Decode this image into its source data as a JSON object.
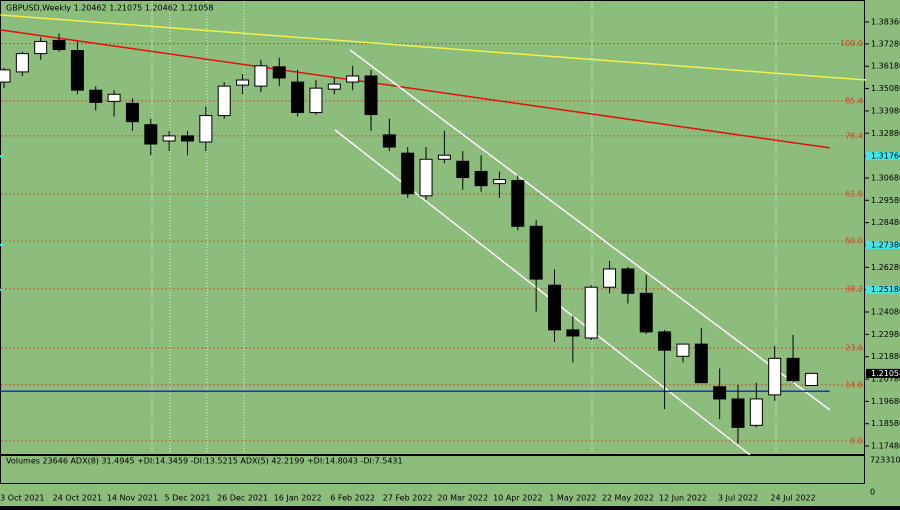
{
  "chart_data": {
    "type": "candlestick",
    "title": "GBPUSD,Weekly  1.20462 1.21075 1.20462 1.21058",
    "x": [
      null,
      "3 Oct 2021",
      null,
      null,
      "24 Oct 2021",
      null,
      null,
      "14 Nov 2021",
      null,
      null,
      "5 Dec 2021",
      null,
      null,
      "26 Dec 2021",
      null,
      null,
      "16 Jan 2022",
      null,
      null,
      "6 Feb 2022",
      null,
      null,
      "27 Feb 2022",
      null,
      null,
      "20 Mar 2022",
      null,
      null,
      "10 Apr 2022",
      null,
      null,
      "1 May 2022",
      null,
      null,
      "22 May 2022",
      null,
      null,
      "12 Jun 2022",
      null,
      null,
      "3 Jul 2022",
      null,
      null,
      "24 Jul 2022",
      null
    ],
    "open": [
      1.354,
      1.359,
      1.368,
      1.3745,
      1.3695,
      1.35,
      1.3445,
      1.3435,
      1.333,
      1.325,
      1.3275,
      1.3245,
      1.3375,
      1.3525,
      1.352,
      1.3615,
      1.354,
      1.339,
      1.3505,
      1.354,
      1.357,
      1.328,
      1.319,
      1.298,
      1.316,
      1.315,
      1.31,
      1.304,
      1.3055,
      1.283,
      1.254,
      1.232,
      1.228,
      1.253,
      1.262,
      1.25,
      1.231,
      1.219,
      1.225,
      1.204,
      1.198,
      1.185,
      1.2,
      1.218,
      1.20462
    ],
    "high": [
      1.361,
      1.369,
      1.376,
      1.378,
      1.374,
      1.352,
      1.35,
      1.346,
      1.336,
      1.33,
      1.33,
      1.342,
      1.354,
      1.358,
      1.365,
      1.366,
      1.36,
      1.355,
      1.356,
      1.362,
      1.36,
      1.336,
      1.322,
      1.322,
      1.33,
      1.32,
      1.318,
      1.31,
      1.308,
      1.286,
      1.262,
      1.239,
      1.254,
      1.266,
      1.263,
      1.259,
      1.232,
      1.225,
      1.233,
      1.213,
      1.205,
      1.206,
      1.224,
      1.2295,
      1.21075
    ],
    "low": [
      1.351,
      1.357,
      1.365,
      1.369,
      1.348,
      1.34,
      1.337,
      1.33,
      1.318,
      1.32,
      1.318,
      1.32,
      1.336,
      1.348,
      1.349,
      1.352,
      1.337,
      1.338,
      1.348,
      1.35,
      1.33,
      1.32,
      1.297,
      1.296,
      1.314,
      1.301,
      1.3,
      1.297,
      1.281,
      1.241,
      1.226,
      1.216,
      1.227,
      1.25,
      1.245,
      1.23,
      1.193,
      1.216,
      1.206,
      1.188,
      1.176,
      1.184,
      1.197,
      1.206,
      1.20462
    ],
    "close": [
      1.36,
      1.368,
      1.374,
      1.37,
      1.35,
      1.344,
      1.348,
      1.3345,
      1.3235,
      1.3275,
      1.325,
      1.3375,
      1.352,
      1.355,
      1.362,
      1.356,
      1.339,
      1.351,
      1.353,
      1.357,
      1.338,
      1.322,
      1.299,
      1.316,
      1.318,
      1.307,
      1.303,
      1.306,
      1.283,
      1.257,
      1.232,
      1.229,
      1.253,
      1.262,
      1.25,
      1.231,
      1.222,
      1.225,
      1.206,
      1.198,
      1.184,
      1.198,
      1.218,
      1.207,
      1.21058
    ],
    "ylim": [
      1.1704,
      1.3944
    ],
    "yticks": [
      {
        "value": 1.3836,
        "label": "1.38360"
      },
      {
        "value": 1.3728,
        "label": "1.37280"
      },
      {
        "value": 1.3618,
        "label": "1.36180"
      },
      {
        "value": 1.3508,
        "label": "1.35080"
      },
      {
        "value": 1.3398,
        "label": "1.33980"
      },
      {
        "value": 1.3288,
        "label": "1.32880"
      },
      {
        "value": 1.3176,
        "label": "1.31760"
      },
      {
        "value": 1.3068,
        "label": "1.30680"
      },
      {
        "value": 1.2958,
        "label": "1.29580"
      },
      {
        "value": 1.2848,
        "label": "1.28480"
      },
      {
        "value": 1.2738,
        "label": "1.27380"
      },
      {
        "value": 1.2628,
        "label": "1.26280"
      },
      {
        "value": 1.2518,
        "label": "1.25180"
      },
      {
        "value": 1.2408,
        "label": "1.24080"
      },
      {
        "value": 1.2298,
        "label": "1.22980"
      },
      {
        "value": 1.2188,
        "label": "1.21880"
      },
      {
        "value": 1.2078,
        "label": "1.20780"
      },
      {
        "value": 1.1968,
        "label": "1.19680"
      },
      {
        "value": 1.1858,
        "label": "1.18580"
      },
      {
        "value": 1.1748,
        "label": "1.17480"
      }
    ],
    "highlighted_yticks": [
      1.3176,
      1.2738,
      1.2518
    ],
    "last_price": {
      "value": 1.21058,
      "label": "1.21058"
    },
    "levels": [
      {
        "label": "100.0",
        "value": 1.3729
      },
      {
        "label": "85.4",
        "value": 1.3447
      },
      {
        "label": "76.4",
        "value": 1.3275
      },
      {
        "label": "61.6",
        "value": 1.2989
      },
      {
        "label": "50.0",
        "value": 1.2757
      },
      {
        "label": "38.2",
        "value": 1.2522
      },
      {
        "label": "23.6",
        "value": 1.2231
      },
      {
        "label": "14.6",
        "value": 1.2049
      },
      {
        "label": "0.0",
        "value": 1.1773
      }
    ],
    "level_color": "#e03a1a",
    "bull_color": "#ffffff",
    "bear_color": "#000000",
    "trendlines": [
      {
        "color": "#f2f24a",
        "x": [
          -0.2,
          47
        ],
        "y": [
          1.387,
          1.355
        ]
      },
      {
        "color": "#e01010",
        "x": [
          -0.2,
          45
        ],
        "y": [
          1.3797,
          1.3216
        ]
      },
      {
        "color": "#ffffff",
        "x": [
          18.86,
          45
        ],
        "y": [
          1.3698,
          1.1926
        ]
      },
      {
        "color": "#ffffff",
        "x": [
          18.04,
          40.65
        ],
        "y": [
          1.3304,
          1.1705
        ]
      },
      {
        "color": "#1a2fd6",
        "x": [
          -0.2,
          45
        ],
        "y": [
          1.2018,
          1.2018
        ]
      }
    ],
    "indicator_title": "Volumes 23646  ADX(8) 31.4945 +DI:14.3459 -DI:13.5215  ADX(5) 42.2199 +DI:14.8043 -DI:7.5431",
    "indicator_ticks": [
      "723310",
      "0"
    ]
  }
}
